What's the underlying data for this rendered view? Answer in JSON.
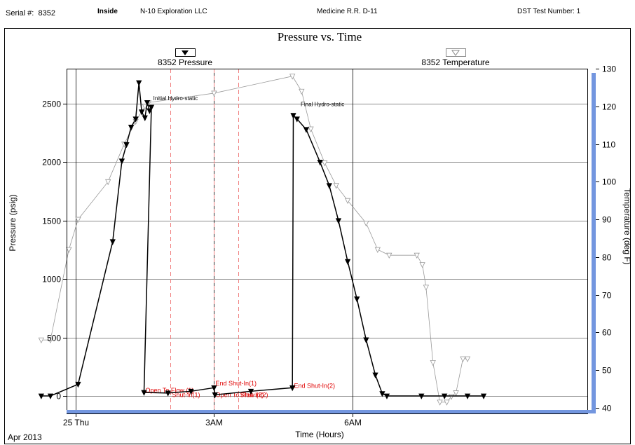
{
  "header": {
    "serial_label": "Serial #:",
    "serial_value": "8352",
    "position": "Inside",
    "company": "N-10 Exploration LLC",
    "well": "Medicine R.R. D-11",
    "test_label": "DST Test Number: 1"
  },
  "chart_data": {
    "type": "line",
    "title": "Pressure vs. Time",
    "xlabel": "Time (Hours)",
    "ylabel": "Pressure (psig)",
    "y2label": "Temperature (deg F)",
    "x_unit": "hours",
    "xlim": [
      -3.2,
      8.1
    ],
    "ylim": [
      -150,
      2800
    ],
    "y2lim": [
      38.5,
      130
    ],
    "x_ticks": [
      {
        "x": 0.0,
        "label": "3AM"
      },
      {
        "x": 3.0,
        "label": "6AM"
      },
      {
        "x": -3.0,
        "label": "25 Thu"
      }
    ],
    "x_date_label": "Apr 2013",
    "y_ticks": [
      0,
      500,
      1000,
      1500,
      2000,
      2500
    ],
    "y2_ticks": [
      40,
      50,
      60,
      70,
      80,
      90,
      100,
      110,
      120,
      130
    ],
    "grid": true,
    "legend": [
      {
        "name": "8352 Pressure",
        "marker": "filled-triangle-down",
        "position": "top-left"
      },
      {
        "name": "8352 Temperature",
        "marker": "open-triangle-down",
        "position": "top-right"
      }
    ],
    "series": [
      {
        "name": "8352 Pressure",
        "axis": "left",
        "color": "#000000",
        "points": [
          [
            -3.75,
            0
          ],
          [
            -3.55,
            0
          ],
          [
            -2.95,
            100
          ],
          [
            -2.2,
            1320
          ],
          [
            -2.0,
            2010
          ],
          [
            -1.9,
            2150
          ],
          [
            -1.8,
            2300
          ],
          [
            -1.7,
            2370
          ],
          [
            -1.63,
            2680
          ],
          [
            -1.57,
            2430
          ],
          [
            -1.5,
            2380
          ],
          [
            -1.45,
            2510
          ],
          [
            -1.4,
            2440
          ],
          [
            -1.36,
            2470
          ],
          [
            -1.52,
            30
          ],
          [
            -1.0,
            25
          ],
          [
            -0.5,
            40
          ],
          [
            0.0,
            70
          ],
          [
            0.02,
            10
          ],
          [
            0.8,
            40
          ],
          [
            1.7,
            70
          ],
          [
            1.72,
            2400
          ],
          [
            1.8,
            2370
          ],
          [
            2.0,
            2280
          ],
          [
            2.3,
            2000
          ],
          [
            2.5,
            1800
          ],
          [
            2.7,
            1500
          ],
          [
            2.9,
            1150
          ],
          [
            3.1,
            830
          ],
          [
            3.3,
            480
          ],
          [
            3.5,
            180
          ],
          [
            3.65,
            20
          ],
          [
            3.75,
            0
          ],
          [
            4.5,
            0
          ],
          [
            5.0,
            0
          ],
          [
            5.5,
            0
          ],
          [
            5.85,
            0
          ]
        ]
      },
      {
        "name": "8352 Temperature",
        "axis": "right",
        "color": "#999999",
        "points": [
          [
            -3.75,
            58
          ],
          [
            -3.55,
            58
          ],
          [
            -3.15,
            82
          ],
          [
            -2.95,
            90
          ],
          [
            -2.3,
            100
          ],
          [
            -1.95,
            110
          ],
          [
            -1.7,
            116
          ],
          [
            -1.5,
            120
          ],
          [
            -1.42,
            121
          ],
          [
            0.0,
            123.5
          ],
          [
            1.7,
            128
          ],
          [
            1.9,
            124
          ],
          [
            2.1,
            114
          ],
          [
            2.4,
            105
          ],
          [
            2.65,
            99
          ],
          [
            2.9,
            95
          ],
          [
            3.3,
            89
          ],
          [
            3.55,
            82
          ],
          [
            3.8,
            80.5
          ],
          [
            4.4,
            80.5
          ],
          [
            4.52,
            78
          ],
          [
            4.6,
            72
          ],
          [
            4.75,
            52
          ],
          [
            4.9,
            41.5
          ],
          [
            5.05,
            41.5
          ],
          [
            5.15,
            43
          ],
          [
            5.25,
            44
          ],
          [
            5.4,
            53
          ],
          [
            5.5,
            53
          ]
        ]
      }
    ],
    "annotations": [
      {
        "text": "Initial Hydro-static",
        "x": -1.32,
        "y": 2530
      },
      {
        "text": "Final Hydro-static",
        "x": 1.88,
        "y": 2480
      }
    ],
    "events": [
      {
        "x": -1.52,
        "label": "Open To Flow (1)",
        "label_y": 30,
        "solid": true
      },
      {
        "x": -0.95,
        "label": "Shut-In(1)",
        "label_y": -10,
        "solid": false
      },
      {
        "x": 0.0,
        "label": "End Shut-In(1)",
        "label_y": 90,
        "solid": true
      },
      {
        "x": 0.0,
        "label": "Open To Flow (2)",
        "label_y": -10,
        "solid": false
      },
      {
        "x": 0.53,
        "label": "Shut-In(2)",
        "label_y": -10,
        "solid": false
      },
      {
        "x": 1.7,
        "label": "End Shut-In(2)",
        "label_y": 70,
        "solid": true
      }
    ]
  }
}
